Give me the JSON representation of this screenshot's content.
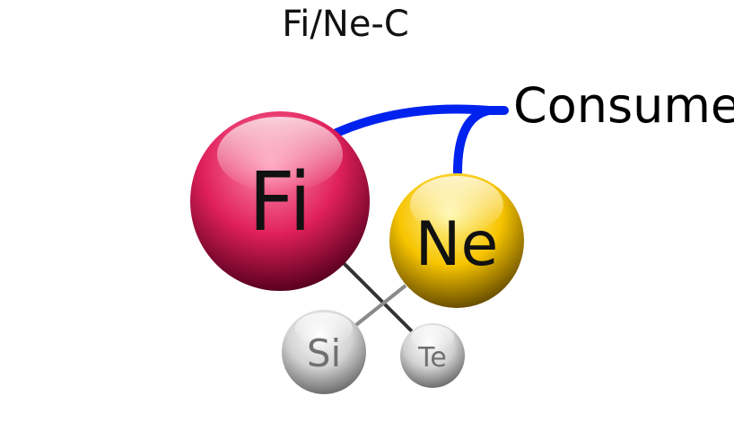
{
  "title": "Fi/Ne-C",
  "relation_label": "Consume",
  "functions": {
    "fi": {
      "label": "Fi",
      "color": "#e0205a"
    },
    "ne": {
      "label": "Ne",
      "color": "#f7c400"
    },
    "si": {
      "label": "Si",
      "color": "#cfcfcf"
    },
    "te": {
      "label": "Te",
      "color": "#cfcfcf"
    }
  },
  "connector_color": "#0022ee"
}
